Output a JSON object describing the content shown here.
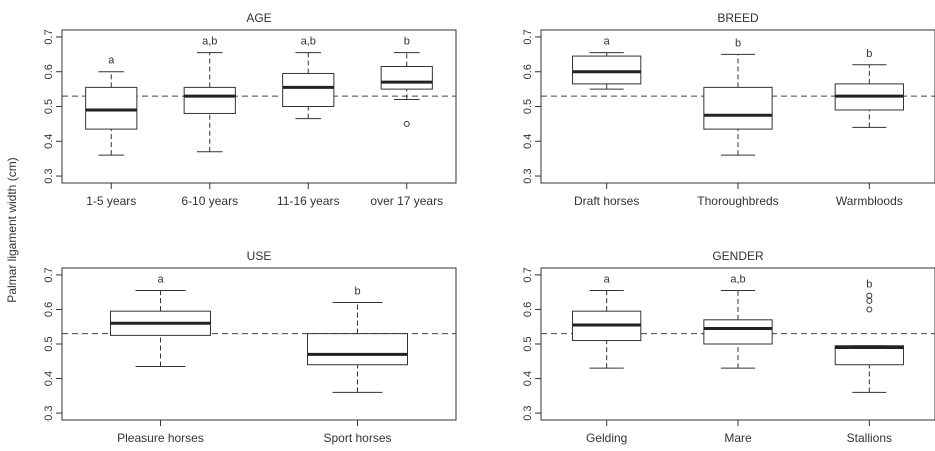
{
  "figure": {
    "ylabel": "Palmar ligament width (cm)",
    "reference_line": 0.53
  },
  "chart_data": [
    {
      "type": "boxplot",
      "title": "AGE",
      "ylim": [
        0.3,
        0.7
      ],
      "yticks": [
        "0.3",
        "0.4",
        "0.5",
        "0.6",
        "0.7"
      ],
      "categories": [
        "1-5 years",
        "6-10 years",
        "11-16 years",
        "over 17 years"
      ],
      "boxes": [
        {
          "min": 0.36,
          "q1": 0.435,
          "median": 0.49,
          "q3": 0.555,
          "max": 0.6,
          "outliers": [],
          "letter": "a"
        },
        {
          "min": 0.37,
          "q1": 0.48,
          "median": 0.53,
          "q3": 0.555,
          "max": 0.655,
          "outliers": [],
          "letter": "a,b"
        },
        {
          "min": 0.465,
          "q1": 0.5,
          "median": 0.555,
          "q3": 0.595,
          "max": 0.655,
          "outliers": [],
          "letter": "a,b"
        },
        {
          "min": 0.52,
          "q1": 0.55,
          "median": 0.57,
          "q3": 0.615,
          "max": 0.655,
          "outliers": [
            0.45
          ],
          "letter": "b"
        }
      ],
      "grid": false
    },
    {
      "type": "boxplot",
      "title": "BREED",
      "ylim": [
        0.3,
        0.7
      ],
      "yticks": [
        "0.3",
        "0.4",
        "0.5",
        "0.6",
        "0.7"
      ],
      "categories": [
        "Draft horses",
        "Thoroughbreds",
        "Warmbloods"
      ],
      "boxes": [
        {
          "min": 0.55,
          "q1": 0.565,
          "median": 0.6,
          "q3": 0.645,
          "max": 0.655,
          "outliers": [],
          "letter": "a"
        },
        {
          "min": 0.36,
          "q1": 0.435,
          "median": 0.475,
          "q3": 0.555,
          "max": 0.65,
          "outliers": [],
          "letter": "b"
        },
        {
          "min": 0.44,
          "q1": 0.49,
          "median": 0.53,
          "q3": 0.565,
          "max": 0.62,
          "outliers": [],
          "letter": "b"
        }
      ],
      "grid": false
    },
    {
      "type": "boxplot",
      "title": "USE",
      "ylim": [
        0.3,
        0.7
      ],
      "yticks": [
        "0.3",
        "0.4",
        "0.5",
        "0.6",
        "0.7"
      ],
      "categories": [
        "Pleasure horses",
        "Sport horses"
      ],
      "boxes": [
        {
          "min": 0.435,
          "q1": 0.525,
          "median": 0.56,
          "q3": 0.595,
          "max": 0.655,
          "outliers": [],
          "letter": "a"
        },
        {
          "min": 0.36,
          "q1": 0.44,
          "median": 0.47,
          "q3": 0.53,
          "max": 0.62,
          "outliers": [],
          "letter": "b"
        }
      ],
      "grid": false
    },
    {
      "type": "boxplot",
      "title": "GENDER",
      "ylim": [
        0.3,
        0.7
      ],
      "yticks": [
        "0.3",
        "0.4",
        "0.5",
        "0.6",
        "0.7"
      ],
      "categories": [
        "Gelding",
        "Mare",
        "Stallions"
      ],
      "boxes": [
        {
          "min": 0.43,
          "q1": 0.51,
          "median": 0.555,
          "q3": 0.595,
          "max": 0.655,
          "outliers": [],
          "letter": "a"
        },
        {
          "min": 0.43,
          "q1": 0.5,
          "median": 0.545,
          "q3": 0.57,
          "max": 0.655,
          "outliers": [],
          "letter": "a,b"
        },
        {
          "min": 0.36,
          "q1": 0.44,
          "median": 0.49,
          "q3": 0.495,
          "max": 0.495,
          "outliers": [
            0.6,
            0.625,
            0.64
          ],
          "letter": "b"
        }
      ],
      "grid": false
    }
  ]
}
